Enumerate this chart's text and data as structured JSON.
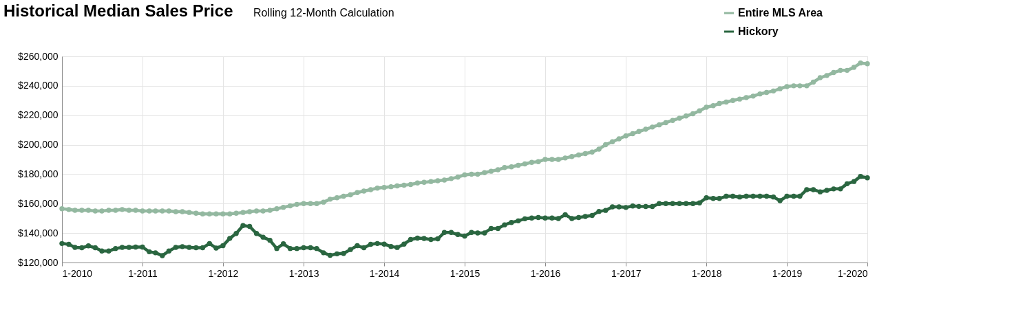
{
  "chart_data": {
    "type": "line",
    "title": "Historical Median Sales Price",
    "subtitle": "Rolling 12-Month Calculation",
    "x": [
      "2010-01",
      "2010-02",
      "2010-03",
      "2010-04",
      "2010-05",
      "2010-06",
      "2010-07",
      "2010-08",
      "2010-09",
      "2010-10",
      "2010-11",
      "2010-12",
      "2011-01",
      "2011-02",
      "2011-03",
      "2011-04",
      "2011-05",
      "2011-06",
      "2011-07",
      "2011-08",
      "2011-09",
      "2011-10",
      "2011-11",
      "2011-12",
      "2012-01",
      "2012-02",
      "2012-03",
      "2012-04",
      "2012-05",
      "2012-06",
      "2012-07",
      "2012-08",
      "2012-09",
      "2012-10",
      "2012-11",
      "2012-12",
      "2013-01",
      "2013-02",
      "2013-03",
      "2013-04",
      "2013-05",
      "2013-06",
      "2013-07",
      "2013-08",
      "2013-09",
      "2013-10",
      "2013-11",
      "2013-12",
      "2014-01",
      "2014-02",
      "2014-03",
      "2014-04",
      "2014-05",
      "2014-06",
      "2014-07",
      "2014-08",
      "2014-09",
      "2014-10",
      "2014-11",
      "2014-12",
      "2015-01",
      "2015-02",
      "2015-03",
      "2015-04",
      "2015-05",
      "2015-06",
      "2015-07",
      "2015-08",
      "2015-09",
      "2015-10",
      "2015-11",
      "2015-12",
      "2016-01",
      "2016-02",
      "2016-03",
      "2016-04",
      "2016-05",
      "2016-06",
      "2016-07",
      "2016-08",
      "2016-09",
      "2016-10",
      "2016-11",
      "2016-12",
      "2017-01",
      "2017-02",
      "2017-03",
      "2017-04",
      "2017-05",
      "2017-06",
      "2017-07",
      "2017-08",
      "2017-09",
      "2017-10",
      "2017-11",
      "2017-12",
      "2018-01",
      "2018-02",
      "2018-03",
      "2018-04",
      "2018-05",
      "2018-06",
      "2018-07",
      "2018-08",
      "2018-09",
      "2018-10",
      "2018-11",
      "2018-12",
      "2019-01",
      "2019-02",
      "2019-03",
      "2019-04",
      "2019-05",
      "2019-06",
      "2019-07",
      "2019-08",
      "2019-09",
      "2019-10",
      "2019-11",
      "2019-12",
      "2020-01"
    ],
    "series": [
      {
        "name": "Entire MLS Area",
        "color": "#93b8a0",
        "values": [
          156500,
          156000,
          155500,
          155500,
          155500,
          155000,
          155000,
          155500,
          155500,
          156000,
          155500,
          155500,
          155000,
          155000,
          155000,
          155000,
          155000,
          154500,
          154500,
          154000,
          153500,
          153000,
          153000,
          153000,
          153000,
          153000,
          153500,
          154000,
          154500,
          155000,
          155000,
          155500,
          156500,
          157500,
          158500,
          159500,
          160000,
          160000,
          160000,
          161000,
          163000,
          164000,
          165000,
          166000,
          167500,
          168500,
          169500,
          170500,
          171000,
          171500,
          172000,
          172500,
          173000,
          174000,
          174500,
          175000,
          175500,
          176000,
          177000,
          178000,
          179500,
          180000,
          180000,
          181000,
          182000,
          183000,
          184500,
          185000,
          186000,
          187000,
          188000,
          188500,
          190000,
          190000,
          190000,
          191000,
          192000,
          193000,
          194000,
          195000,
          197000,
          200000,
          202000,
          204000,
          206000,
          207500,
          209000,
          210500,
          212000,
          213500,
          215000,
          216500,
          218000,
          219500,
          221000,
          223000,
          225500,
          226500,
          228000,
          229000,
          230000,
          231000,
          232000,
          233000,
          234500,
          235500,
          236500,
          238000,
          239500,
          240000,
          240000,
          240000,
          242500,
          245500,
          247000,
          249000,
          250500,
          250500,
          252500,
          255500,
          255000
        ]
      },
      {
        "name": "Hickory",
        "color": "#2a6640",
        "values": [
          132900,
          132400,
          130300,
          130000,
          131300,
          130000,
          127800,
          127800,
          129500,
          130300,
          130300,
          130500,
          130500,
          127300,
          126600,
          124700,
          127800,
          130300,
          130800,
          130300,
          130000,
          130000,
          132900,
          129800,
          131400,
          136400,
          139700,
          145100,
          144500,
          139700,
          137200,
          135100,
          129500,
          132700,
          129500,
          129500,
          130000,
          130000,
          129500,
          126600,
          124900,
          125900,
          126200,
          128800,
          131400,
          130000,
          132400,
          132900,
          132500,
          130900,
          130200,
          132500,
          135600,
          136600,
          136300,
          135600,
          136100,
          140400,
          140400,
          139000,
          138000,
          140400,
          140100,
          140100,
          143100,
          143100,
          145600,
          147200,
          148300,
          149700,
          150200,
          150600,
          150200,
          150200,
          149900,
          152400,
          149900,
          150600,
          151300,
          152000,
          154700,
          155400,
          157800,
          157800,
          157400,
          158400,
          158100,
          158000,
          158000,
          160000,
          160000,
          160000,
          160000,
          160000,
          160000,
          160500,
          164000,
          163500,
          163500,
          165000,
          165000,
          164500,
          165000,
          165000,
          165000,
          165000,
          164500,
          162000,
          165000,
          165000,
          165000,
          169500,
          169500,
          168000,
          169000,
          170000,
          170000,
          173500,
          175000,
          178500,
          177500
        ]
      }
    ],
    "xlim": [
      "2010-01",
      "2020-01"
    ],
    "xticks": [
      {
        "value": "2010-01",
        "label": "1-2010"
      },
      {
        "value": "2011-01",
        "label": "1-2011"
      },
      {
        "value": "2012-01",
        "label": "1-2012"
      },
      {
        "value": "2013-01",
        "label": "1-2013"
      },
      {
        "value": "2014-01",
        "label": "1-2014"
      },
      {
        "value": "2015-01",
        "label": "1-2015"
      },
      {
        "value": "2016-01",
        "label": "1-2016"
      },
      {
        "value": "2017-01",
        "label": "1-2017"
      },
      {
        "value": "2018-01",
        "label": "1-2018"
      },
      {
        "value": "2019-01",
        "label": "1-2019"
      },
      {
        "value": "2020-01",
        "label": "1-2020"
      }
    ],
    "ylim": [
      120000,
      260000
    ],
    "yticks": [
      {
        "value": 120000,
        "label": "$120,000"
      },
      {
        "value": 140000,
        "label": "$140,000"
      },
      {
        "value": 160000,
        "label": "$160,000"
      },
      {
        "value": 180000,
        "label": "$180,000"
      },
      {
        "value": 200000,
        "label": "$200,000"
      },
      {
        "value": 220000,
        "label": "$220,000"
      },
      {
        "value": 240000,
        "label": "$240,000"
      },
      {
        "value": 260000,
        "label": "$260,000"
      }
    ],
    "grid": true,
    "legend": "top right",
    "marker": "circle",
    "line_style": "solid"
  }
}
